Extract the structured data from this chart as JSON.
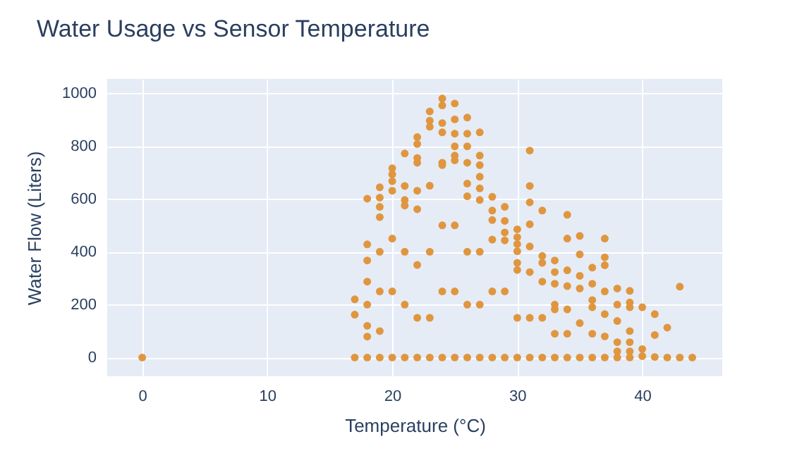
{
  "chart_data": {
    "type": "scatter",
    "title": "Water Usage vs Sensor Temperature",
    "xlabel": "Temperature (°C)",
    "ylabel": "Water Flow (Liters)",
    "xlim": [
      -2.8,
      46.4
    ],
    "xticks": [
      0,
      10,
      20,
      30,
      40
    ],
    "ylim": [
      -71,
      1054
    ],
    "yticks": [
      0,
      200,
      400,
      600,
      800,
      1000
    ],
    "grid": true,
    "marker": "circle",
    "series": [
      {
        "color": "#e0963f",
        "x": [
          0,
          17,
          17,
          17,
          18,
          18,
          18,
          18,
          18,
          18,
          18,
          18,
          19,
          19,
          19,
          19,
          19,
          19,
          19,
          19,
          20,
          20,
          20,
          20,
          20,
          20,
          20,
          21,
          21,
          21,
          21,
          21,
          21,
          21,
          22,
          22,
          22,
          22,
          22,
          22,
          22,
          22,
          22,
          23,
          23,
          23,
          23,
          23,
          23,
          23,
          24,
          24,
          24,
          24,
          24,
          24,
          24,
          24,
          24,
          25,
          25,
          25,
          25,
          25,
          25,
          25,
          25,
          25,
          26,
          26,
          26,
          26,
          26,
          26,
          26,
          26,
          26,
          27,
          27,
          27,
          27,
          27,
          27,
          27,
          27,
          27,
          28,
          28,
          28,
          28,
          28,
          28,
          29,
          29,
          29,
          29,
          29,
          29,
          30,
          30,
          30,
          30,
          30,
          30,
          30,
          30,
          31,
          31,
          31,
          31,
          31,
          31,
          31,
          31,
          32,
          32,
          32,
          32,
          32,
          32,
          33,
          33,
          33,
          33,
          33,
          33,
          33,
          34,
          34,
          34,
          34,
          34,
          34,
          34,
          35,
          35,
          35,
          35,
          35,
          35,
          36,
          36,
          36,
          36,
          36,
          36,
          37,
          37,
          37,
          37,
          37,
          37,
          37,
          38,
          38,
          38,
          38,
          38,
          38,
          39,
          39,
          39,
          39,
          39,
          39,
          39,
          40,
          40,
          40,
          41,
          41,
          41,
          42,
          42,
          43,
          43,
          44
        ],
        "values": [
          0,
          220,
          162,
          0,
          601,
          428,
          367,
          287,
          200,
          120,
          79,
          0,
          644,
          605,
          570,
          531,
          400,
          250,
          100,
          0,
          716,
          693,
          667,
          631,
          450,
          250,
          0,
          772,
          649,
          596,
          575,
          400,
          200,
          0,
          834,
          808,
          755,
          737,
          631,
          561,
          350,
          150,
          0,
          931,
          896,
          873,
          650,
          400,
          150,
          0,
          980,
          954,
          887,
          852,
          737,
          728,
          500,
          250,
          0,
          961,
          901,
          847,
          799,
          764,
          746,
          500,
          250,
          0,
          908,
          847,
          799,
          737,
          658,
          610,
          400,
          200,
          0,
          852,
          764,
          728,
          684,
          640,
          596,
          400,
          200,
          0,
          608,
          556,
          520,
          446,
          250,
          0,
          570,
          517,
          473,
          443,
          250,
          0,
          485,
          455,
          429,
          402,
          358,
          331,
          150,
          0,
          783,
          649,
          587,
          504,
          420,
          323,
          150,
          0,
          556,
          384,
          358,
          287,
          150,
          0,
          367,
          323,
          279,
          200,
          182,
          90,
          0,
          540,
          450,
          330,
          270,
          182,
          90,
          0,
          460,
          390,
          309,
          261,
          130,
          0,
          340,
          279,
          217,
          190,
          90,
          0,
          450,
          379,
          349,
          250,
          164,
          80,
          0,
          261,
          200,
          138,
          58,
          23,
          0,
          252,
          208,
          190,
          100,
          58,
          23,
          0,
          190,
          32,
          5,
          164,
          85,
          2,
          113,
          0,
          268,
          0,
          0
        ]
      }
    ]
  }
}
